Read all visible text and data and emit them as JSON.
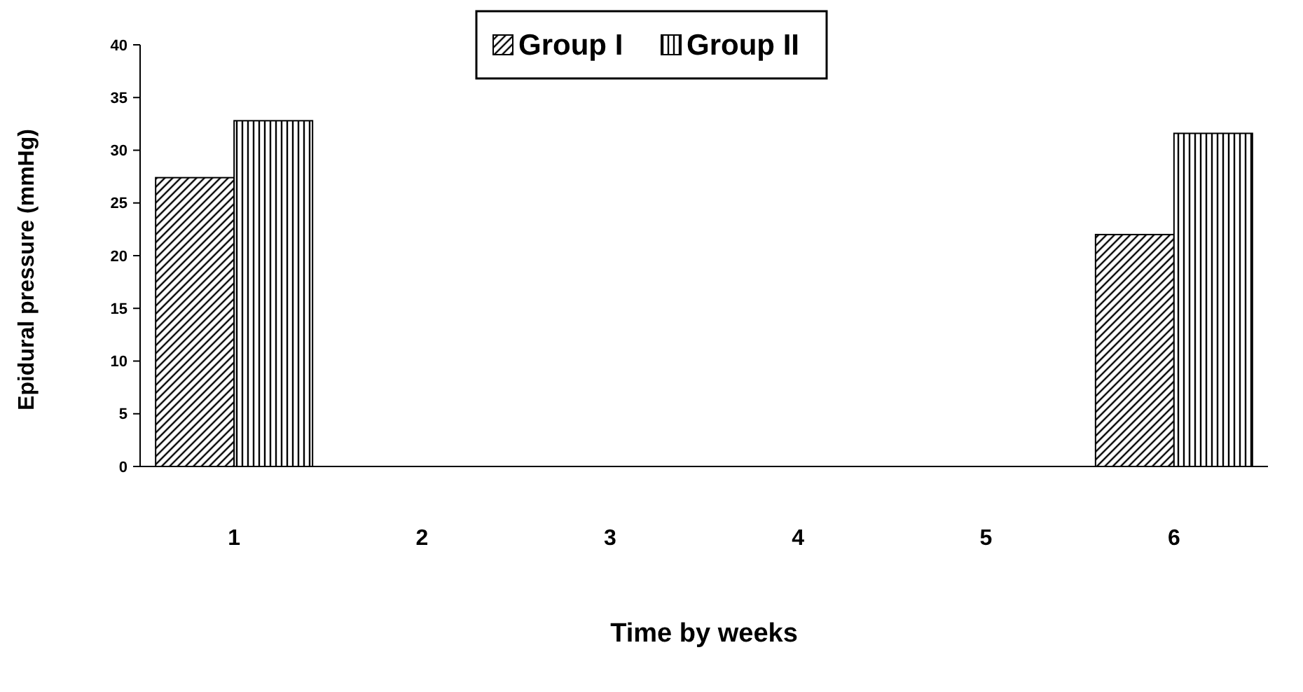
{
  "chart_data": {
    "type": "bar",
    "xlabel": "Time by weeks",
    "ylabel": "Epidural pressure (mmHg)",
    "categories": [
      "1",
      "2",
      "3",
      "4",
      "5",
      "6"
    ],
    "series": [
      {
        "name": "Group I",
        "color": "#000000",
        "values": [
          27.4,
          null,
          null,
          null,
          null,
          22.0
        ]
      },
      {
        "name": "Group II",
        "color": "#000000",
        "values": [
          32.8,
          null,
          null,
          null,
          null,
          31.6
        ]
      }
    ],
    "ylim": [
      0,
      40
    ],
    "yticks": [
      0,
      5,
      10,
      15,
      20,
      25,
      30,
      35,
      40
    ],
    "legend": "top",
    "grid": false
  }
}
